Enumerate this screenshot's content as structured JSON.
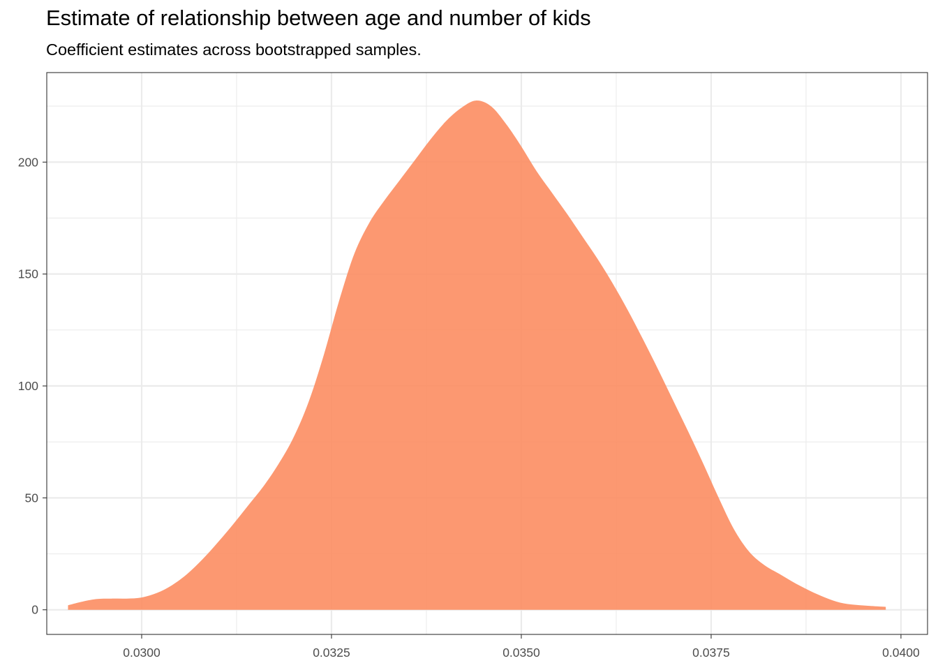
{
  "chart_data": {
    "type": "area",
    "title": "Estimate of relationship between age and number of kids",
    "subtitle": "Coefficient estimates across bootstrapped samples.",
    "xlabel": "",
    "ylabel": "",
    "xlim": [
      0.02875,
      0.04035
    ],
    "ylim": [
      -11,
      240
    ],
    "x_ticks": [
      0.03,
      0.0325,
      0.035,
      0.0375,
      0.04
    ],
    "x_tick_labels": [
      "0.0300",
      "0.0325",
      "0.0350",
      "0.0375",
      "0.0400"
    ],
    "x_minor_ticks": [
      0.02875,
      0.03125,
      0.03375,
      0.03625,
      0.03875
    ],
    "y_ticks": [
      0,
      50,
      100,
      150,
      200
    ],
    "y_tick_labels": [
      "0",
      "50",
      "100",
      "150",
      "200"
    ],
    "y_minor_ticks": [
      25,
      75,
      125,
      175,
      225
    ],
    "grid": true,
    "fill_color": "#FC8D62",
    "fill_opacity": 0.9,
    "series": [
      {
        "x": [
          0.02903,
          0.0292,
          0.0294,
          0.0296,
          0.0298,
          0.03,
          0.0302,
          0.0304,
          0.0306,
          0.0308,
          0.031,
          0.0312,
          0.0314,
          0.0316,
          0.0318,
          0.032,
          0.0322,
          0.0324,
          0.0326,
          0.0328,
          0.033,
          0.0332,
          0.0334,
          0.0336,
          0.0338,
          0.034,
          0.0342,
          0.0344,
          0.0346,
          0.0348,
          0.035,
          0.0352,
          0.0354,
          0.0356,
          0.0358,
          0.036,
          0.0362,
          0.0364,
          0.0366,
          0.0368,
          0.037,
          0.0372,
          0.0374,
          0.0376,
          0.0378,
          0.038,
          0.0382,
          0.0384,
          0.0386,
          0.0388,
          0.039,
          0.0392,
          0.0394,
          0.0396,
          0.0398
        ],
        "y": [
          2,
          3.5,
          4.8,
          5,
          5,
          5.5,
          7.5,
          11,
          16,
          22.5,
          30,
          38,
          46.5,
          55,
          65,
          77,
          93,
          114,
          138,
          159,
          173,
          183,
          192,
          201,
          210,
          218,
          224,
          227.5,
          225,
          217,
          207,
          196,
          186.5,
          177,
          167,
          157,
          146,
          134,
          121,
          107.5,
          93.5,
          79.5,
          65,
          50,
          36,
          26,
          20,
          16,
          12,
          8.5,
          5.5,
          3.2,
          2.2,
          1.7,
          1.3
        ]
      }
    ]
  }
}
